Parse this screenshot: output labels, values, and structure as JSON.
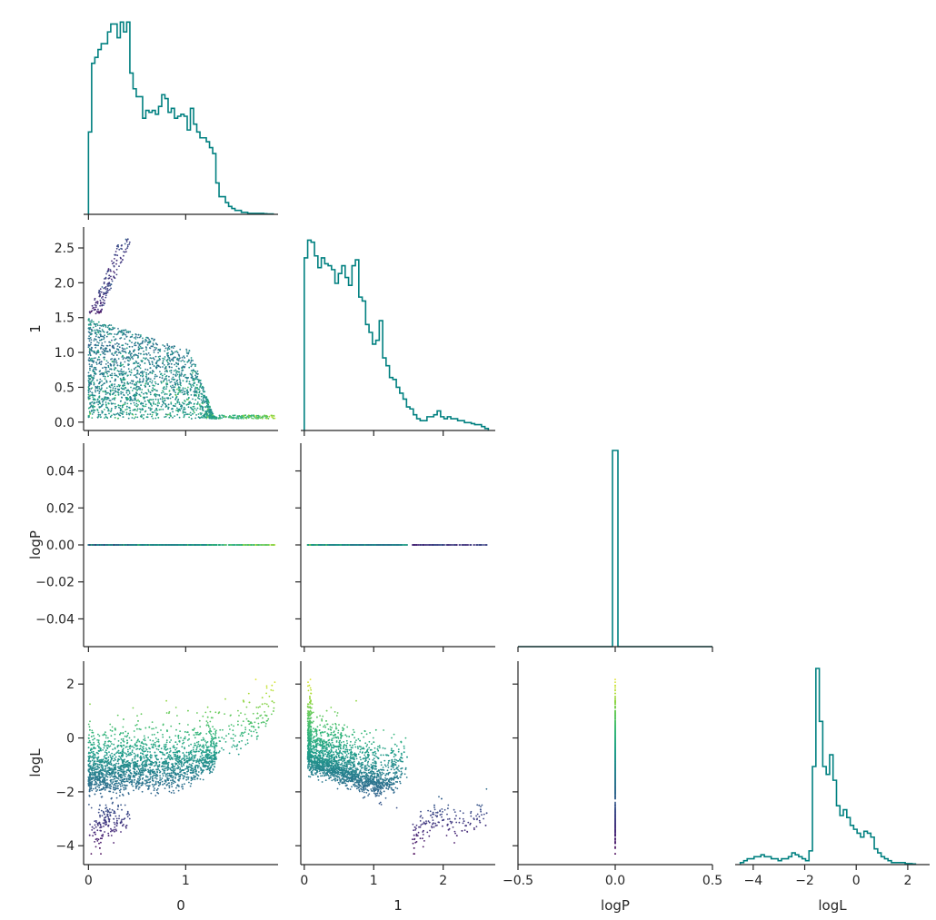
{
  "chart_data": {
    "type": "corner-scatter-matrix",
    "variables": [
      "0",
      "1",
      "logP",
      "logL"
    ],
    "axis_labels": {
      "x": [
        "0",
        "1",
        "logP",
        "logL"
      ],
      "y": [
        "",
        "1",
        "logP",
        "logL"
      ]
    },
    "ticks": {
      "0": [
        0,
        1
      ],
      "1": [
        0,
        1,
        2
      ],
      "1_y": [
        "0.0",
        "0.5",
        "1.0",
        "1.5",
        "2.0",
        "2.5"
      ],
      "logP_x": [
        "−0.5",
        "0.0",
        "0.5"
      ],
      "logP_y": [
        "−0.04",
        "−0.02",
        "0.00",
        "0.02",
        "0.04"
      ],
      "logL_x": [
        "−4",
        "−2",
        "0",
        "2"
      ],
      "logL_y": [
        "−4",
        "−2",
        "0",
        "2"
      ]
    },
    "ranges": {
      "0": [
        -0.05,
        1.95
      ],
      "1": [
        -0.05,
        2.75
      ],
      "logP": [
        -0.5,
        0.5
      ],
      "logL": [
        -4.7,
        2.85
      ]
    },
    "histograms": {
      "0": {
        "range": [
          0,
          1.9
        ],
        "counts": [
          0.42,
          0.77,
          0.8,
          0.84,
          0.87,
          0.87,
          0.93,
          0.97,
          0.97,
          0.9,
          0.98,
          0.93,
          0.98,
          0.72,
          0.64,
          0.6,
          0.6,
          0.49,
          0.53,
          0.52,
          0.53,
          0.51,
          0.55,
          0.61,
          0.59,
          0.52,
          0.54,
          0.49,
          0.5,
          0.51,
          0.5,
          0.43,
          0.54,
          0.46,
          0.42,
          0.39,
          0.39,
          0.37,
          0.34,
          0.31,
          0.16,
          0.09,
          0.09,
          0.06,
          0.04,
          0.03,
          0.02,
          0.02,
          0.01,
          0.01,
          0.005,
          0.005,
          0.005,
          0.005,
          0.005,
          0.003,
          0.002,
          0.002
        ]
      },
      "1": {
        "range": [
          0,
          2.65
        ],
        "counts": [
          0.88,
          0.97,
          0.96,
          0.89,
          0.83,
          0.88,
          0.85,
          0.84,
          0.82,
          0.75,
          0.8,
          0.84,
          0.78,
          0.74,
          0.84,
          0.87,
          0.68,
          0.66,
          0.54,
          0.5,
          0.44,
          0.46,
          0.56,
          0.37,
          0.33,
          0.27,
          0.26,
          0.22,
          0.19,
          0.16,
          0.12,
          0.11,
          0.08,
          0.06,
          0.05,
          0.05,
          0.07,
          0.07,
          0.08,
          0.1,
          0.07,
          0.06,
          0.07,
          0.06,
          0.06,
          0.05,
          0.05,
          0.04,
          0.04,
          0.035,
          0.03,
          0.03,
          0.02,
          0.01
        ]
      },
      "logP": {
        "bins": [
          -0.5,
          0.5
        ],
        "spike_at": 0.0,
        "height": 1.0
      },
      "logL": {
        "range": [
          -4.5,
          2.3
        ],
        "counts": [
          0.01,
          0.02,
          0.03,
          0.03,
          0.04,
          0.04,
          0.05,
          0.04,
          0.04,
          0.03,
          0.03,
          0.02,
          0.03,
          0.03,
          0.04,
          0.06,
          0.05,
          0.04,
          0.03,
          0.02,
          0.07,
          0.5,
          1.0,
          0.73,
          0.5,
          0.46,
          0.56,
          0.43,
          0.3,
          0.25,
          0.28,
          0.24,
          0.2,
          0.18,
          0.16,
          0.14,
          0.17,
          0.16,
          0.14,
          0.08,
          0.06,
          0.04,
          0.03,
          0.02,
          0.01,
          0.01,
          0.01,
          0.01,
          0.005,
          0.005,
          0.003
        ]
      }
    },
    "scatter_colormap": "viridis",
    "colors": {
      "histogram_line": "#008080",
      "axis": "#262626",
      "background": "#ffffff"
    }
  }
}
